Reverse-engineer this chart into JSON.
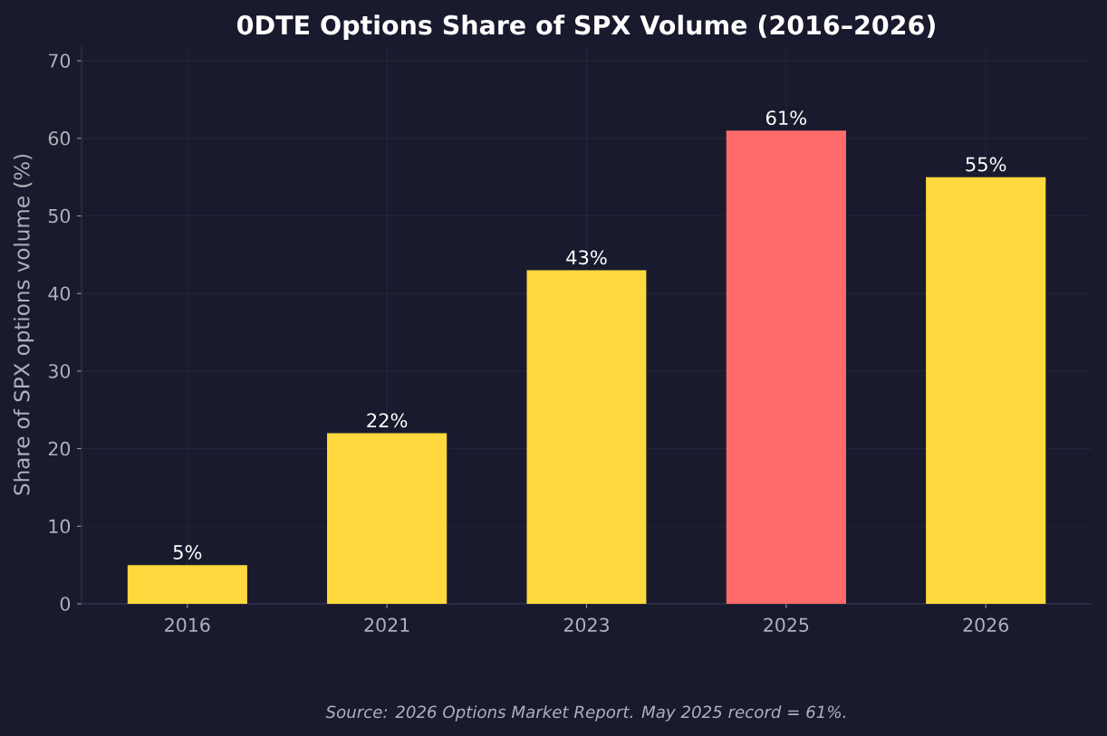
{
  "chart_data": {
    "type": "bar",
    "title": "0DTE Options Share of SPX Volume (2016–2026)",
    "ylabel": "Share of SPX options volume (%)",
    "categories": [
      "2016",
      "2021",
      "2023",
      "2025",
      "2026"
    ],
    "values": [
      5,
      22,
      43,
      61,
      55
    ],
    "colors": [
      "#ffd93d",
      "#ffd93d",
      "#ffd93d",
      "#ff6b6b",
      "#ffd93d"
    ],
    "value_labels": [
      "5%",
      "22%",
      "43%",
      "61%",
      "55%"
    ],
    "ylim": [
      0,
      72
    ],
    "yticks": [
      0,
      10,
      20,
      30,
      40,
      50,
      60,
      70
    ],
    "grid": true,
    "annotations": [
      "Source: 2026 Options Market Report. May 2025 record = 61%."
    ]
  }
}
